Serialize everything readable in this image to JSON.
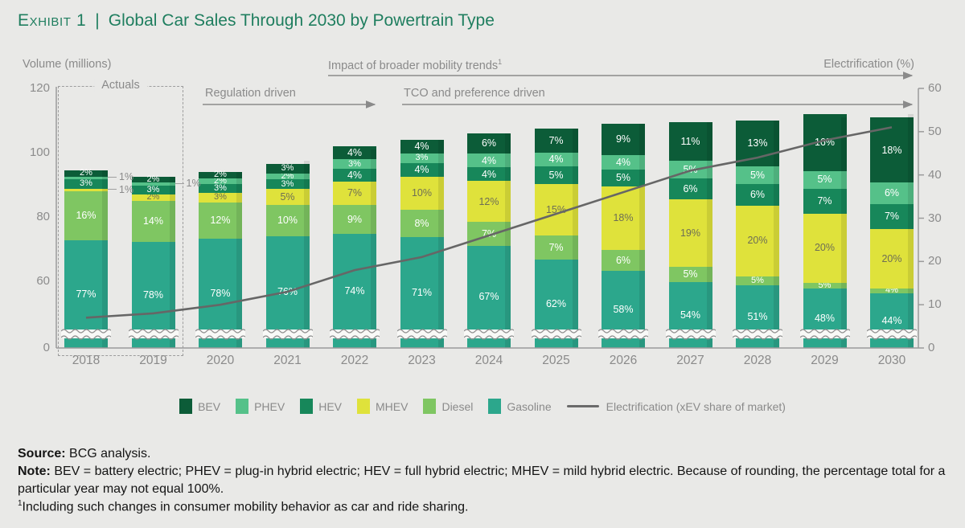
{
  "header": {
    "exhibit_label": "Exhibit 1",
    "divider": "|",
    "title": "Global Car Sales Through 2030 by Powertrain Type"
  },
  "annotations": {
    "volume_axis": "Volume (millions)",
    "electrification_axis": "Electrification (%)",
    "actuals": "Actuals",
    "regulation": "Regulation driven",
    "tco": "TCO and preference driven",
    "mobility": "Impact of broader mobility trends",
    "mobility_sup": "1"
  },
  "chart_data": {
    "type": "bar",
    "stacked": true,
    "title": "Global Car Sales Through 2030 by Powertrain Type",
    "categories": [
      2018,
      2019,
      2020,
      2021,
      2022,
      2023,
      2024,
      2025,
      2026,
      2027,
      2028,
      2029,
      2030
    ],
    "volume_totals_millions": [
      94.5,
      92.5,
      94,
      97.5,
      101,
      104,
      106,
      107.5,
      109,
      109.5,
      110,
      111,
      112
    ],
    "series": [
      {
        "name": "Gasoline",
        "color": "#2ca78c",
        "label_color": "#ffffff",
        "values": [
          77,
          78,
          78,
          76,
          74,
          71,
          67,
          62,
          58,
          54,
          51,
          48,
          44
        ]
      },
      {
        "name": "Diesel",
        "color": "#7fc662",
        "label_color": "#ffffff",
        "values": [
          16,
          14,
          12,
          10,
          9,
          8,
          7,
          7,
          6,
          5,
          5,
          5,
          4
        ]
      },
      {
        "name": "MHEV",
        "color": "#dfe23b",
        "label_color": "#6e6e55",
        "values": [
          1,
          2,
          3,
          5,
          7,
          10,
          12,
          15,
          18,
          19,
          20,
          20,
          20
        ]
      },
      {
        "name": "HEV",
        "color": "#17875a",
        "label_color": "#ffffff",
        "values": [
          3,
          3,
          3,
          3,
          4,
          4,
          4,
          5,
          5,
          6,
          6,
          7,
          7
        ]
      },
      {
        "name": "PHEV",
        "color": "#55c189",
        "label_color": "#ffffff",
        "values": [
          1,
          1,
          2,
          2,
          3,
          3,
          4,
          4,
          4,
          5,
          5,
          5,
          6
        ]
      },
      {
        "name": "BEV",
        "color": "#0c5c38",
        "label_color": "#ffffff",
        "values": [
          2,
          2,
          2,
          3,
          4,
          4,
          6,
          7,
          9,
          11,
          13,
          16,
          18
        ]
      }
    ],
    "line_series": {
      "name": "Electrification (xEV share of market)",
      "color": "#666666",
      "values": [
        7,
        8,
        10,
        13,
        18,
        21,
        26,
        31,
        36,
        41,
        44,
        48,
        51
      ]
    },
    "callouts": [
      {
        "year": 2018,
        "series": "PHEV",
        "label": "1%"
      },
      {
        "year": 2018,
        "series": "MHEV",
        "label": "1%"
      },
      {
        "year": 2019,
        "series": "PHEV",
        "label": "1%"
      }
    ],
    "left_axis": {
      "label": "Volume (millions)",
      "ticks": [
        120,
        100,
        80,
        60,
        0
      ],
      "range": [
        0,
        120
      ],
      "break": true
    },
    "right_axis": {
      "label": "Electrification (%)",
      "ticks": [
        60,
        50,
        40,
        30,
        20,
        10,
        0
      ],
      "range": [
        0,
        60
      ]
    },
    "legend": [
      {
        "name": "BEV",
        "color": "#0c5c38",
        "type": "swatch"
      },
      {
        "name": "PHEV",
        "color": "#55c189",
        "type": "swatch"
      },
      {
        "name": "HEV",
        "color": "#17875a",
        "type": "swatch"
      },
      {
        "name": "MHEV",
        "color": "#dfe23b",
        "type": "swatch"
      },
      {
        "name": "Diesel",
        "color": "#7fc662",
        "type": "swatch"
      },
      {
        "name": "Gasoline",
        "color": "#2ca78c",
        "type": "swatch"
      },
      {
        "name": "Electrification (xEV share of market)",
        "color": "#6a6a6a",
        "type": "line"
      }
    ],
    "grid": false,
    "legend_position": "bottom"
  },
  "footer": {
    "source_label": "Source:",
    "source_text": " BCG analysis.",
    "note_label": "Note:",
    "note_text": " BEV = battery electric; PHEV = plug-in hybrid electric; HEV = full hybrid electric; MHEV = mild hybrid electric. Because of rounding, the percentage total for a particular year may not equal 100%.",
    "footnote_sup": "1",
    "footnote_text": "Including such changes in consumer mobility behavior as car and ride sharing."
  }
}
